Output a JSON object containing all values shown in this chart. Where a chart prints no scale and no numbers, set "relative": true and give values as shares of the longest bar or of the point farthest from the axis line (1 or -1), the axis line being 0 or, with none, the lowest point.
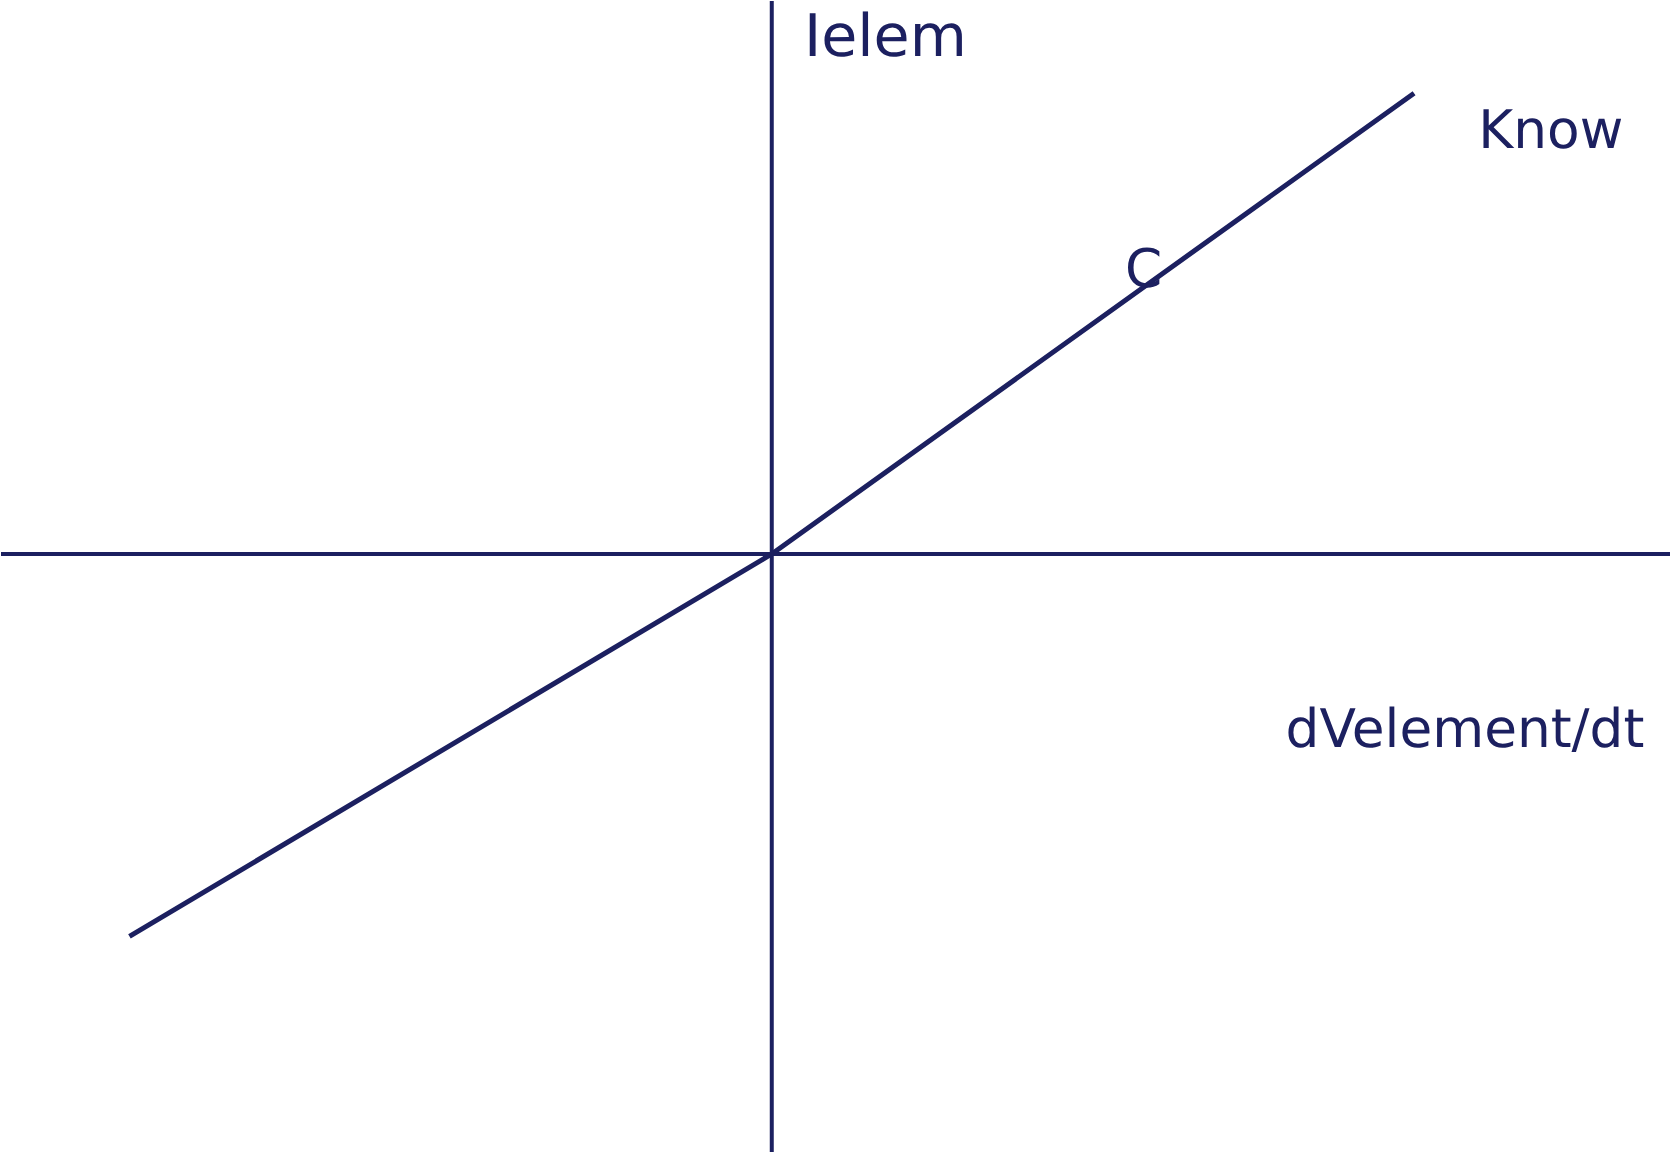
{
  "chart_data": {
    "type": "line",
    "relative": true,
    "xlabel": "dVelement/dt",
    "ylabel": "Ielem",
    "categories": [
      null,
      null,
      null
    ],
    "series": [
      {
        "color": "#1c2060",
        "values": [
          -0.83,
          0,
          1
        ]
      }
    ],
    "annotations": [
      "C",
      "Know"
    ],
    "grid": false,
    "tick_labels": false
  }
}
